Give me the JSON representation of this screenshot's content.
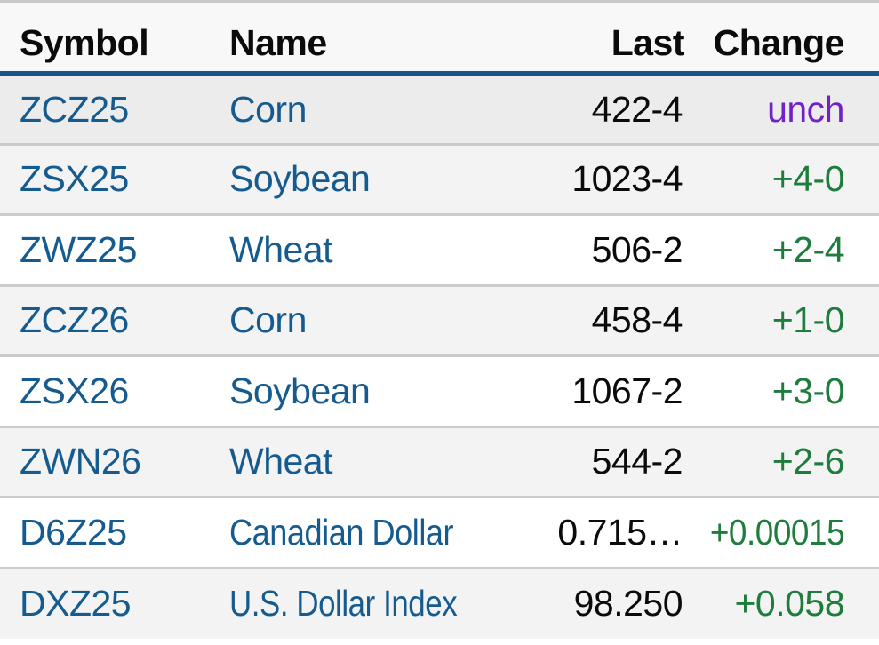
{
  "table": {
    "columns": {
      "symbol": "Symbol",
      "name": "Name",
      "last": "Last",
      "change": "Change"
    },
    "rows": [
      {
        "symbol": "ZCZ25",
        "name": "Corn",
        "last": "422-4",
        "change": "unch",
        "change_state": "unchanged"
      },
      {
        "symbol": "ZSX25",
        "name": "Soybean",
        "last": "1023-4",
        "change": "+4-0",
        "change_state": "up"
      },
      {
        "symbol": "ZWZ25",
        "name": "Wheat",
        "last": "506-2",
        "change": "+2-4",
        "change_state": "up"
      },
      {
        "symbol": "ZCZ26",
        "name": "Corn",
        "last": "458-4",
        "change": "+1-0",
        "change_state": "up"
      },
      {
        "symbol": "ZSX26",
        "name": "Soybean",
        "last": "1067-2",
        "change": "+3-0",
        "change_state": "up"
      },
      {
        "symbol": "ZWN26",
        "name": "Wheat",
        "last": "544-2",
        "change": "+2-6",
        "change_state": "up"
      },
      {
        "symbol": "D6Z25",
        "name": "Canadian Dollar",
        "last": "0.715…",
        "change": "+0.00015",
        "change_state": "up"
      },
      {
        "symbol": "DXZ25",
        "name": "U.S. Dollar Index",
        "last": "98.250",
        "change": "+0.058",
        "change_state": "up"
      }
    ],
    "colors": {
      "link_blue": "#155b8f",
      "header_underline_blue": "#14578b",
      "positive_green": "#1e7d3c",
      "unchanged_purple": "#7122c6",
      "row_stripe_gray": "#f3f3f3",
      "row_highlight_gray": "#ececec",
      "header_background": "#f8f8f8",
      "row_divider_gray": "#cbcbcb",
      "top_border_gray": "#c8c8c8"
    }
  }
}
